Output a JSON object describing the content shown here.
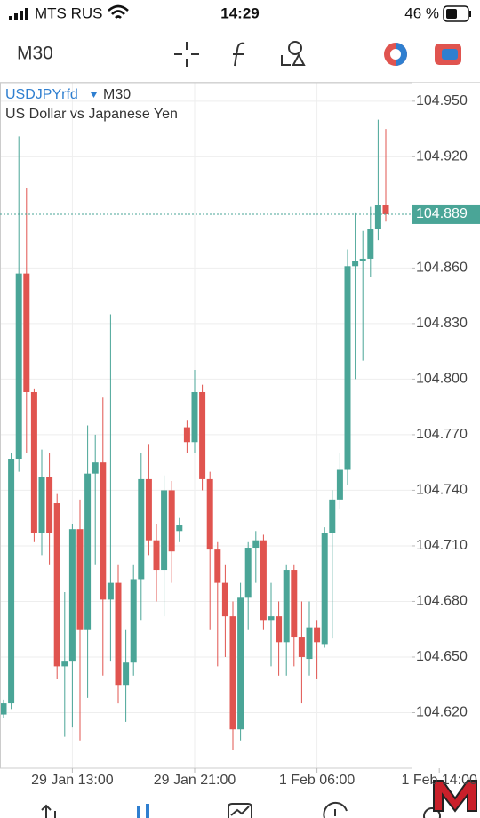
{
  "status_bar": {
    "carrier": "MTS RUS",
    "time": "14:29",
    "battery": "46 %"
  },
  "toolbar": {
    "timeframe": "M30"
  },
  "chart_data": {
    "type": "candlestick",
    "symbol": "USDJPYrfd",
    "timeframe": "M30",
    "description": "US Dollar vs Japanese Yen",
    "categories": [
      null,
      null,
      null,
      null,
      null,
      null,
      null,
      null,
      null,
      "29 Jan 13:00",
      null,
      null,
      null,
      null,
      null,
      null,
      null,
      null,
      null,
      null,
      null,
      null,
      null,
      null,
      null,
      "29 Jan 21:00",
      null,
      null,
      null,
      null,
      null,
      null,
      null,
      null,
      null,
      null,
      null,
      null,
      null,
      null,
      null,
      "1 Feb 06:00",
      null,
      null,
      null,
      null,
      null,
      null,
      null,
      null,
      null,
      null,
      null,
      null,
      null,
      null,
      null,
      "1 Feb 14:00"
    ],
    "open": [
      104.619,
      104.625,
      104.757,
      104.857,
      104.793,
      104.717,
      104.747,
      104.733,
      104.645,
      104.648,
      104.719,
      104.665,
      104.749,
      104.755,
      104.681,
      104.69,
      104.635,
      104.647,
      104.692,
      104.746,
      104.713,
      104.697,
      104.74,
      104.718,
      104.774,
      104.766,
      104.793,
      104.746,
      104.708,
      104.69,
      104.672,
      104.611,
      104.682,
      104.709,
      104.713,
      104.67,
      104.672,
      104.658,
      104.697,
      104.661,
      104.649,
      104.666,
      104.657,
      104.717,
      104.735,
      104.751,
      104.861,
      104.864,
      104.865,
      104.881,
      104.894,
      null,
      null,
      null,
      null,
      null,
      null,
      null
    ],
    "high": [
      104.627,
      104.76,
      104.931,
      104.903,
      104.795,
      104.762,
      104.76,
      104.738,
      104.685,
      104.722,
      104.735,
      104.775,
      104.77,
      104.79,
      104.835,
      104.7,
      104.665,
      104.7,
      104.76,
      104.765,
      104.722,
      104.748,
      104.745,
      104.725,
      104.778,
      104.805,
      104.797,
      104.75,
      104.712,
      104.7,
      104.68,
      104.69,
      104.712,
      104.718,
      104.716,
      104.69,
      104.68,
      104.7,
      104.7,
      104.68,
      104.68,
      104.67,
      104.72,
      104.74,
      104.76,
      104.87,
      104.89,
      104.88,
      104.893,
      104.94,
      104.935,
      null,
      null,
      null,
      null,
      null,
      null,
      null
    ],
    "low": [
      104.617,
      104.622,
      104.75,
      104.76,
      104.712,
      104.705,
      104.7,
      104.638,
      104.607,
      104.612,
      104.605,
      104.628,
      104.7,
      104.64,
      104.648,
      104.625,
      104.615,
      104.64,
      104.67,
      104.705,
      104.68,
      104.672,
      104.69,
      104.712,
      104.76,
      104.76,
      104.74,
      104.665,
      104.645,
      104.65,
      104.6,
      104.605,
      104.665,
      104.69,
      104.665,
      104.645,
      104.64,
      104.64,
      104.645,
      104.625,
      104.64,
      104.638,
      104.655,
      104.66,
      104.73,
      104.743,
      104.8,
      104.81,
      104.855,
      104.875,
      104.885,
      null,
      null,
      null,
      null,
      null,
      null,
      null
    ],
    "close": [
      104.625,
      104.757,
      104.857,
      104.793,
      104.717,
      104.747,
      104.717,
      104.645,
      104.648,
      104.719,
      104.665,
      104.749,
      104.755,
      104.681,
      104.69,
      104.635,
      104.647,
      104.692,
      104.746,
      104.713,
      104.697,
      104.74,
      104.707,
      104.721,
      104.766,
      104.793,
      104.746,
      104.708,
      104.69,
      104.672,
      104.611,
      104.682,
      104.709,
      104.713,
      104.67,
      104.672,
      104.658,
      104.697,
      104.661,
      104.65,
      104.666,
      104.658,
      104.717,
      104.735,
      104.751,
      104.861,
      104.864,
      104.865,
      104.881,
      104.894,
      104.889,
      null,
      null,
      null,
      null,
      null,
      null,
      null
    ],
    "up_color": "#4aa597",
    "down_color": "#e0544f",
    "ylim": [
      104.59,
      104.96
    ],
    "yticks": [
      {
        "value": 104.95,
        "label": "104.950"
      },
      {
        "value": 104.92,
        "label": "104.920"
      },
      {
        "value": 104.86,
        "label": "104.860"
      },
      {
        "value": 104.83,
        "label": "104.830"
      },
      {
        "value": 104.8,
        "label": "104.800"
      },
      {
        "value": 104.77,
        "label": "104.770"
      },
      {
        "value": 104.74,
        "label": "104.740"
      },
      {
        "value": 104.71,
        "label": "104.710"
      },
      {
        "value": 104.68,
        "label": "104.680"
      },
      {
        "value": 104.65,
        "label": "104.650"
      },
      {
        "value": 104.62,
        "label": "104.620"
      }
    ],
    "last_price": 104.889,
    "last_price_color": "#4aa597",
    "grid": true
  }
}
